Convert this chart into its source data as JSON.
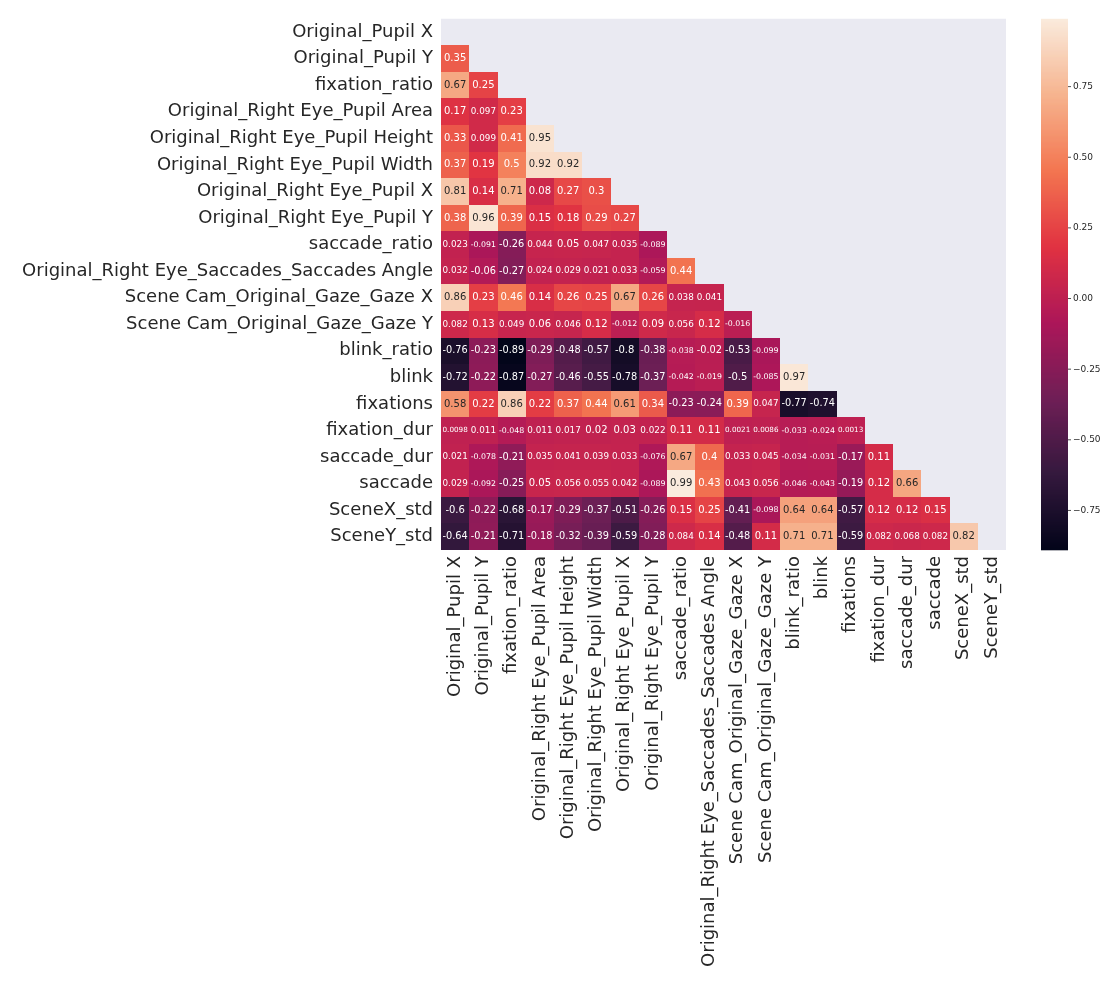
{
  "chart_data": {
    "type": "heatmap",
    "categories": [
      "Original_Pupil X",
      "Original_Pupil Y",
      "fixation_ratio",
      "Original_Right Eye_Pupil Area",
      "Original_Right Eye_Pupil Height",
      "Original_Right Eye_Pupil Width",
      "Original_Right Eye_Pupil X",
      "Original_Right Eye_Pupil Y",
      "saccade_ratio",
      "Original_Right Eye_Saccades_Saccades Angle",
      "Scene Cam_Original_Gaze_Gaze X",
      "Scene Cam_Original_Gaze_Gaze Y",
      "blink_ratio",
      "blink",
      "fixations",
      "fixation_dur",
      "saccade_dur",
      "saccade",
      "SceneX_std",
      "SceneY_std"
    ],
    "y_categories": [
      "Original_Pupil X",
      "Original_Pupil Y",
      "fixation_ratio",
      "Original_Right Eye_Pupil Area",
      "Original_Right Eye_Pupil Height",
      "Original_Right Eye_Pupil Width",
      "Original_Right Eye_Pupil X",
      "Original_Right Eye_Pupil Y",
      "saccade_ratio",
      "Original_Right Eye_Saccades_Saccades Angle",
      "Scene Cam_Original_Gaze_Gaze X",
      "Scene Cam_Original_Gaze_Gaze Y",
      "blink_ratio",
      "blink",
      "fixations",
      "fixation_dur",
      "saccade_dur",
      "saccade",
      "SceneX_std",
      "SceneY_std"
    ],
    "cells": [
      [
        null,
        null,
        null,
        null,
        null,
        null,
        null,
        null,
        null,
        null,
        null,
        null,
        null,
        null,
        null,
        null,
        null,
        null,
        null,
        null
      ],
      [
        0.35,
        null,
        null,
        null,
        null,
        null,
        null,
        null,
        null,
        null,
        null,
        null,
        null,
        null,
        null,
        null,
        null,
        null,
        null,
        null
      ],
      [
        0.67,
        0.25,
        null,
        null,
        null,
        null,
        null,
        null,
        null,
        null,
        null,
        null,
        null,
        null,
        null,
        null,
        null,
        null,
        null,
        null
      ],
      [
        0.17,
        0.097,
        0.23,
        null,
        null,
        null,
        null,
        null,
        null,
        null,
        null,
        null,
        null,
        null,
        null,
        null,
        null,
        null,
        null,
        null
      ],
      [
        0.33,
        0.099,
        0.41,
        0.95,
        null,
        null,
        null,
        null,
        null,
        null,
        null,
        null,
        null,
        null,
        null,
        null,
        null,
        null,
        null,
        null
      ],
      [
        0.37,
        0.19,
        0.5,
        0.92,
        0.92,
        null,
        null,
        null,
        null,
        null,
        null,
        null,
        null,
        null,
        null,
        null,
        null,
        null,
        null,
        null
      ],
      [
        0.81,
        0.14,
        0.71,
        0.08,
        0.27,
        0.3,
        null,
        null,
        null,
        null,
        null,
        null,
        null,
        null,
        null,
        null,
        null,
        null,
        null,
        null
      ],
      [
        0.38,
        0.96,
        0.39,
        0.15,
        0.18,
        0.29,
        0.27,
        null,
        null,
        null,
        null,
        null,
        null,
        null,
        null,
        null,
        null,
        null,
        null,
        null
      ],
      [
        0.023,
        -0.091,
        -0.26,
        0.044,
        0.05,
        0.047,
        0.035,
        -0.089,
        null,
        null,
        null,
        null,
        null,
        null,
        null,
        null,
        null,
        null,
        null,
        null
      ],
      [
        0.032,
        -0.06,
        -0.27,
        0.024,
        0.029,
        0.021,
        0.033,
        -0.059,
        0.44,
        null,
        null,
        null,
        null,
        null,
        null,
        null,
        null,
        null,
        null,
        null
      ],
      [
        0.86,
        0.23,
        0.46,
        0.14,
        0.26,
        0.25,
        0.67,
        0.26,
        0.038,
        0.041,
        null,
        null,
        null,
        null,
        null,
        null,
        null,
        null,
        null,
        null
      ],
      [
        0.082,
        0.13,
        0.049,
        0.06,
        0.046,
        0.12,
        -0.012,
        0.09,
        0.056,
        0.12,
        -0.016,
        null,
        null,
        null,
        null,
        null,
        null,
        null,
        null,
        null
      ],
      [
        -0.76,
        -0.23,
        -0.89,
        -0.29,
        -0.48,
        -0.57,
        -0.8,
        -0.38,
        -0.038,
        -0.02,
        -0.53,
        -0.099,
        null,
        null,
        null,
        null,
        null,
        null,
        null,
        null
      ],
      [
        -0.72,
        -0.22,
        -0.87,
        -0.27,
        -0.46,
        -0.55,
        -0.78,
        -0.37,
        -0.042,
        -0.019,
        -0.5,
        -0.085,
        0.97,
        null,
        null,
        null,
        null,
        null,
        null,
        null
      ],
      [
        0.58,
        0.22,
        0.86,
        0.22,
        0.37,
        0.44,
        0.61,
        0.34,
        -0.23,
        -0.24,
        0.39,
        0.047,
        -0.77,
        -0.74,
        null,
        null,
        null,
        null,
        null,
        null
      ],
      [
        0.0098,
        0.011,
        -0.048,
        0.011,
        0.017,
        0.02,
        0.03,
        0.022,
        0.11,
        0.11,
        0.0021,
        0.0086,
        -0.033,
        -0.024,
        0.0013,
        null,
        null,
        null,
        null,
        null
      ],
      [
        0.021,
        -0.078,
        -0.21,
        0.035,
        0.041,
        0.039,
        0.033,
        -0.076,
        0.67,
        0.4,
        0.033,
        0.045,
        -0.034,
        -0.031,
        -0.17,
        0.11,
        null,
        null,
        null,
        null
      ],
      [
        0.029,
        -0.092,
        -0.25,
        0.05,
        0.056,
        0.055,
        0.042,
        -0.089,
        0.99,
        0.43,
        0.043,
        0.056,
        -0.046,
        -0.043,
        -0.19,
        0.12,
        0.66,
        null,
        null,
        null
      ],
      [
        -0.6,
        -0.22,
        -0.68,
        -0.17,
        -0.29,
        -0.37,
        -0.51,
        -0.26,
        0.15,
        0.25,
        -0.41,
        -0.098,
        0.64,
        0.64,
        -0.57,
        0.12,
        0.12,
        0.15,
        null,
        null
      ],
      [
        -0.64,
        -0.21,
        -0.71,
        -0.18,
        -0.32,
        -0.39,
        -0.59,
        -0.28,
        0.084,
        0.14,
        -0.48,
        0.11,
        0.71,
        0.71,
        -0.59,
        0.082,
        0.068,
        0.082,
        0.82,
        null
      ]
    ],
    "clim": [
      -0.89,
      0.99
    ],
    "cticks": [
      {
        "value": -0.75,
        "label": "−0.75"
      },
      {
        "value": -0.5,
        "label": "−0.50"
      },
      {
        "value": -0.25,
        "label": "−0.25"
      },
      {
        "value": 0,
        "label": "0.00"
      },
      {
        "value": 0.25,
        "label": "0.25"
      },
      {
        "value": 0.5,
        "label": "0.50"
      },
      {
        "value": 0.75,
        "label": "0.75"
      }
    ],
    "data_labels": true
  }
}
